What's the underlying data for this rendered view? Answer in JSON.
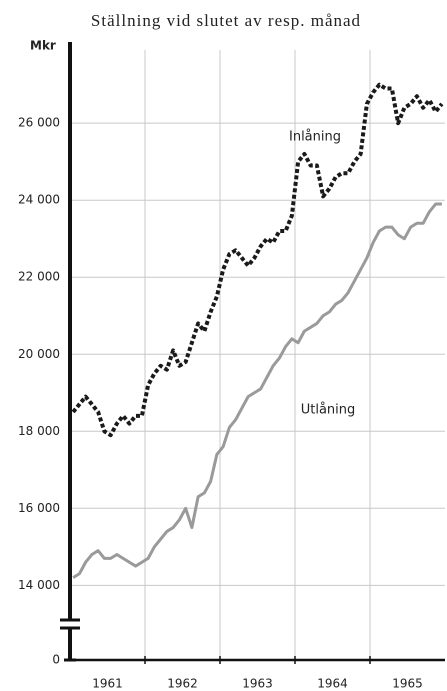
{
  "chart_data": {
    "type": "line",
    "title": "Ställning vid slutet av resp. månad",
    "y_label": "Mkr",
    "categories": [
      null,
      null,
      null,
      null,
      null,
      null,
      null,
      null,
      null,
      null,
      null,
      null,
      null,
      null,
      null,
      null,
      null,
      null,
      null,
      null,
      null,
      null,
      null,
      null,
      null,
      null,
      null,
      null,
      null,
      null,
      null,
      null,
      null,
      null,
      null,
      null,
      null,
      null,
      null,
      null,
      null,
      null,
      null,
      null,
      null,
      null,
      null,
      null,
      null,
      null,
      null,
      null,
      null,
      null,
      null,
      null,
      null,
      null,
      null,
      null
    ],
    "xgroups": [
      "1961",
      "1962",
      "1963",
      "1964",
      "1965"
    ],
    "ylim": [
      13100,
      27900
    ],
    "y_break": true,
    "yticks": [
      0,
      {
        "value": 14000,
        "label": "14 000"
      },
      {
        "value": 16000,
        "label": "16 000"
      },
      {
        "value": 18000,
        "label": "18 000"
      },
      {
        "value": 20000,
        "label": "20 000"
      },
      {
        "value": 22000,
        "label": "22 000"
      },
      {
        "value": 24000,
        "label": "24 000"
      },
      {
        "value": 26000,
        "label": "26 000"
      }
    ],
    "grid": true,
    "series": [
      {
        "name": "Inlåning",
        "color": "#1a1a1a",
        "dashed": true,
        "values": [
          18500,
          18700,
          18900,
          18700,
          18500,
          18000,
          17900,
          18200,
          18400,
          18200,
          18400,
          18400,
          19200,
          19500,
          19700,
          19600,
          20100,
          19700,
          19800,
          20300,
          20800,
          20600,
          21100,
          21500,
          22200,
          22600,
          22700,
          22500,
          22300,
          22500,
          22800,
          23000,
          22900,
          23200,
          23200,
          23600,
          25000,
          25200,
          24900,
          24900,
          24100,
          24300,
          24600,
          24700,
          24700,
          25000,
          25200,
          26500,
          26800,
          27000,
          26900,
          26900,
          26000,
          26400,
          26500,
          26700,
          26400,
          26600,
          26300,
          26500
        ]
      },
      {
        "name": "Utlåning",
        "color": "#9a9a9a",
        "dashed": false,
        "values": [
          14200,
          14300,
          14600,
          14800,
          14900,
          14700,
          14700,
          14800,
          14700,
          14600,
          14500,
          14600,
          14700,
          15000,
          15200,
          15400,
          15500,
          15700,
          16000,
          15500,
          16300,
          16400,
          16700,
          17400,
          17600,
          18100,
          18300,
          18600,
          18900,
          19000,
          19100,
          19400,
          19700,
          19900,
          20200,
          20400,
          20300,
          20600,
          20700,
          20800,
          21000,
          21100,
          21300,
          21400,
          21600,
          21900,
          22200,
          22500,
          22900,
          23200,
          23300,
          23300,
          23100,
          23000,
          23300,
          23400,
          23400,
          23700,
          23900,
          23900
        ]
      }
    ]
  }
}
